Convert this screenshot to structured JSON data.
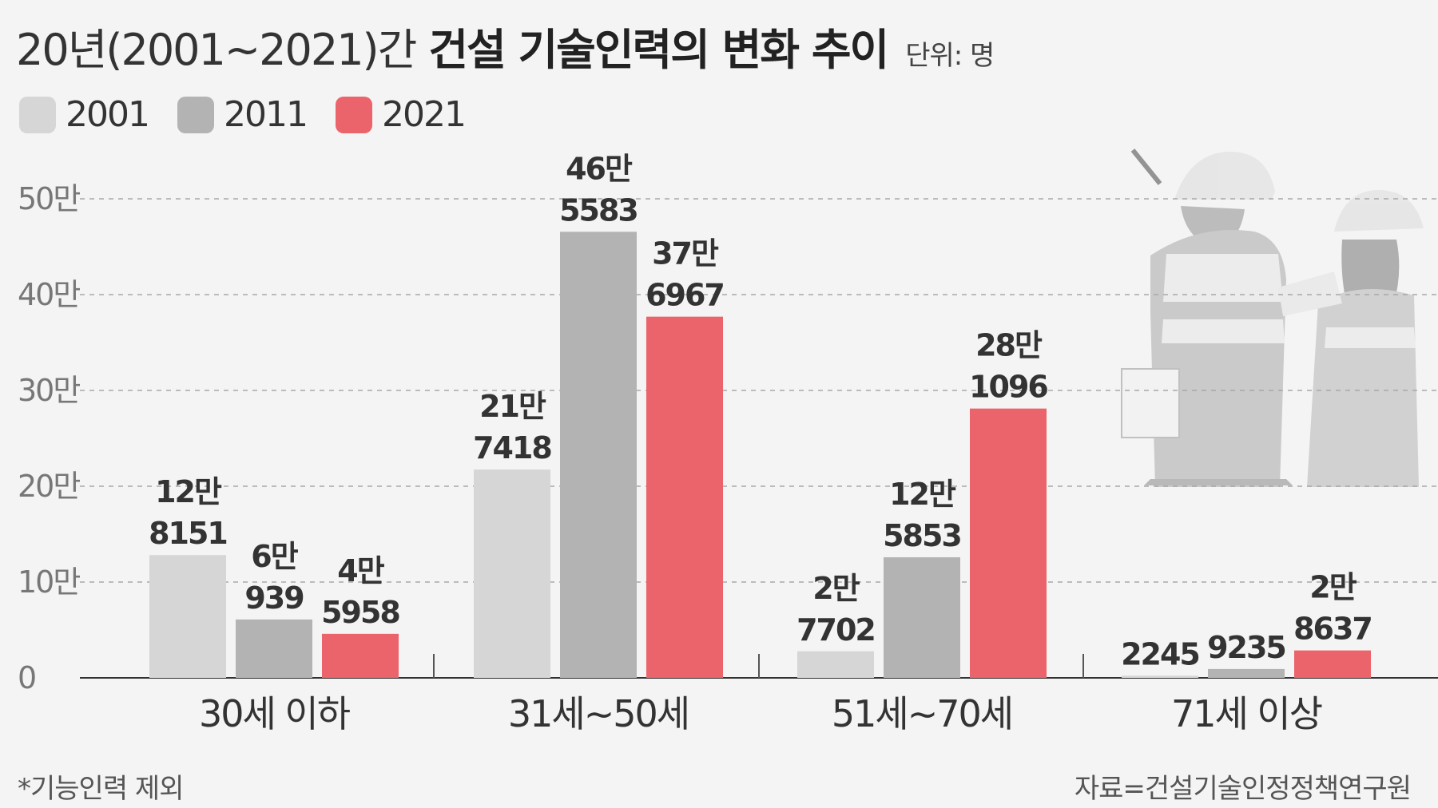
{
  "title": {
    "light": "20년(2001~2021)간",
    "bold": "건설 기술인력의 변화 추이",
    "unit": "단위: 명"
  },
  "footnote": "*기능인력 제외",
  "source": "자료=건설기술인정정책연구원",
  "colors": {
    "s2001": "#d6d6d6",
    "s2011": "#b3b3b3",
    "s2021": "#eb646c",
    "background": "#f4f4f4"
  },
  "chart_data": {
    "type": "bar",
    "title": "20년(2001~2021)간 건설 기술인력의 변화 추이",
    "unit": "명",
    "categories": [
      "30세 이하",
      "31세~50세",
      "51세~70세",
      "71세 이상"
    ],
    "series": [
      {
        "name": "2001",
        "values": [
          128151,
          217418,
          27702,
          2245
        ],
        "labels": [
          [
            "12만",
            "8151"
          ],
          [
            "21만",
            "7418"
          ],
          [
            "2만",
            "7702"
          ],
          [
            "2245"
          ]
        ]
      },
      {
        "name": "2011",
        "values": [
          60939,
          465583,
          125853,
          9235
        ],
        "labels": [
          [
            "6만",
            "939"
          ],
          [
            "46만",
            "5583"
          ],
          [
            "12만",
            "5853"
          ],
          [
            "9235"
          ]
        ]
      },
      {
        "name": "2021",
        "values": [
          45958,
          376967,
          281096,
          28637
        ],
        "labels": [
          [
            "4만",
            "5958"
          ],
          [
            "37만",
            "6967"
          ],
          [
            "28만",
            "1096"
          ],
          [
            "2만",
            "8637"
          ]
        ]
      }
    ],
    "y_ticks": [
      {
        "value": 0,
        "label": "0"
      },
      {
        "value": 100000,
        "label": "10만"
      },
      {
        "value": 200000,
        "label": "20만"
      },
      {
        "value": 300000,
        "label": "30만"
      },
      {
        "value": 400000,
        "label": "40만"
      },
      {
        "value": 500000,
        "label": "50만"
      }
    ],
    "ylim": [
      0,
      500000
    ],
    "grid": true,
    "legend": "top-left"
  }
}
